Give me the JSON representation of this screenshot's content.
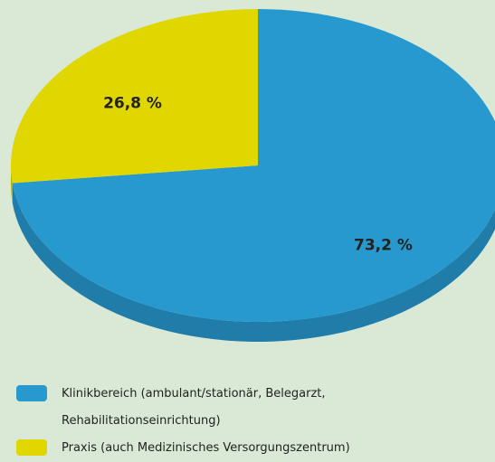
{
  "chart_data": {
    "type": "pie",
    "categories": [
      "Klinikbereich (ambulant/stationär, Belegarzt, Rehabilitationseinrichtung)",
      "Praxis (auch Medizinisches Versorgungszentrum)"
    ],
    "values": [
      73.2,
      26.8
    ],
    "value_labels": [
      "73,2 %",
      "26,8 %"
    ],
    "colors": [
      "#2799cf",
      "#e0d700"
    ]
  }
}
